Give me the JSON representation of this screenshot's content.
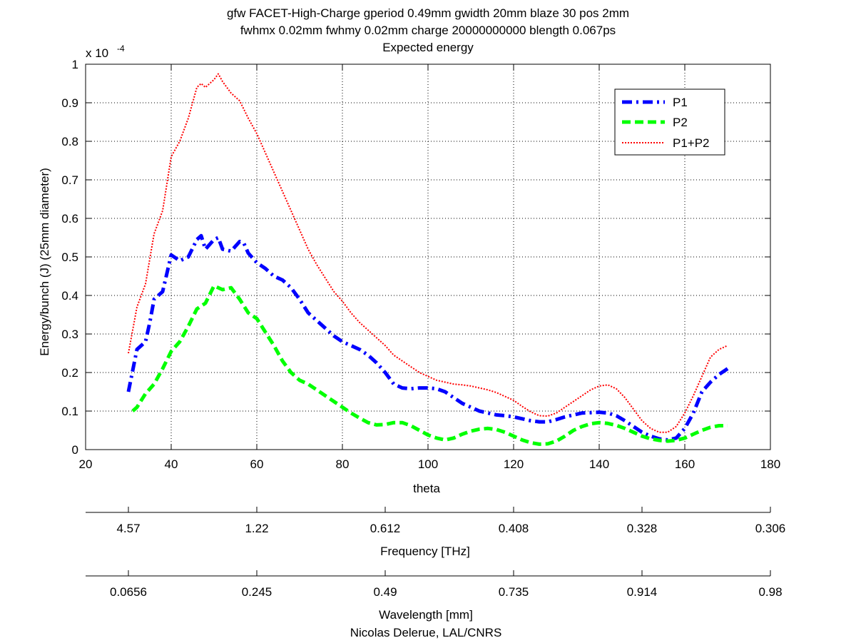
{
  "chart_data": {
    "type": "line",
    "title": [
      "gfw FACET-High-Charge gperiod 0.49mm gwidth 20mm blaze 30 pos 2mm",
      "fwhmx 0.02mm fwhmy 0.02mm charge 20000000000 blength 0.067ps",
      "Expected energy"
    ],
    "xlabel": "theta",
    "ylabel": "Energy/bunch (J) (25mm diameter)",
    "y_multiplier": "x 10",
    "y_multiplier_exp": "-4",
    "xlim": [
      20,
      180
    ],
    "ylim": [
      0,
      1
    ],
    "grid": true,
    "legend_position": "top-right",
    "x_ticks": [
      20,
      40,
      60,
      80,
      100,
      120,
      140,
      160,
      180
    ],
    "y_ticks": [
      0,
      0.1,
      0.2,
      0.3,
      0.4,
      0.5,
      0.6,
      0.7,
      0.8,
      0.9,
      1
    ],
    "x_tick_labels": [
      "20",
      "40",
      "60",
      "80",
      "100",
      "120",
      "140",
      "160",
      "180"
    ],
    "y_tick_labels": [
      "0",
      "0.1",
      "0.2",
      "0.3",
      "0.4",
      "0.5",
      "0.6",
      "0.7",
      "0.8",
      "0.9",
      "1"
    ],
    "series": [
      {
        "name": "P1",
        "color": "#0000ff",
        "style": "dashdot",
        "x": [
          30,
          32,
          34,
          35,
          36,
          38,
          40,
          42,
          44,
          46,
          47,
          48,
          50,
          51,
          52,
          54,
          56,
          57,
          58,
          60,
          62,
          64,
          66,
          68,
          70,
          72,
          74,
          76,
          78,
          80,
          82,
          84,
          86,
          88,
          90,
          92,
          94,
          96,
          98,
          100,
          102,
          104,
          106,
          108,
          110,
          112,
          114,
          116,
          118,
          120,
          122,
          124,
          126,
          128,
          130,
          132,
          134,
          136,
          138,
          140,
          142,
          144,
          146,
          148,
          150,
          152,
          154,
          156,
          158,
          160,
          162,
          164,
          166,
          168,
          170
        ],
        "y": [
          0.15,
          0.26,
          0.28,
          0.33,
          0.39,
          0.41,
          0.505,
          0.49,
          0.5,
          0.545,
          0.555,
          0.52,
          0.545,
          0.55,
          0.52,
          0.515,
          0.54,
          0.535,
          0.51,
          0.485,
          0.47,
          0.45,
          0.44,
          0.42,
          0.39,
          0.355,
          0.335,
          0.315,
          0.295,
          0.28,
          0.27,
          0.26,
          0.245,
          0.225,
          0.2,
          0.17,
          0.16,
          0.158,
          0.16,
          0.16,
          0.158,
          0.15,
          0.135,
          0.12,
          0.11,
          0.1,
          0.095,
          0.09,
          0.088,
          0.085,
          0.08,
          0.075,
          0.072,
          0.072,
          0.078,
          0.085,
          0.09,
          0.095,
          0.096,
          0.097,
          0.095,
          0.088,
          0.075,
          0.06,
          0.045,
          0.035,
          0.028,
          0.025,
          0.03,
          0.055,
          0.095,
          0.15,
          0.175,
          0.195,
          0.21
        ]
      },
      {
        "name": "P2",
        "color": "#00ff00",
        "style": "dashed",
        "x": [
          31,
          32,
          34,
          36,
          38,
          40,
          42,
          44,
          46,
          48,
          50,
          52,
          54,
          56,
          58,
          60,
          62,
          64,
          66,
          68,
          70,
          72,
          74,
          76,
          78,
          80,
          82,
          84,
          86,
          88,
          90,
          92,
          94,
          96,
          98,
          100,
          102,
          104,
          106,
          108,
          110,
          112,
          114,
          116,
          118,
          120,
          122,
          124,
          126,
          128,
          130,
          132,
          134,
          136,
          138,
          140,
          142,
          144,
          146,
          148,
          150,
          152,
          154,
          156,
          158,
          160,
          162,
          164,
          166,
          168,
          170
        ],
        "y": [
          0.1,
          0.11,
          0.145,
          0.17,
          0.21,
          0.255,
          0.28,
          0.32,
          0.365,
          0.38,
          0.425,
          0.415,
          0.42,
          0.39,
          0.355,
          0.34,
          0.305,
          0.27,
          0.23,
          0.2,
          0.18,
          0.17,
          0.155,
          0.14,
          0.125,
          0.11,
          0.095,
          0.082,
          0.07,
          0.064,
          0.065,
          0.07,
          0.07,
          0.062,
          0.05,
          0.038,
          0.03,
          0.025,
          0.03,
          0.04,
          0.048,
          0.053,
          0.055,
          0.052,
          0.045,
          0.035,
          0.025,
          0.018,
          0.014,
          0.015,
          0.022,
          0.035,
          0.05,
          0.06,
          0.067,
          0.07,
          0.068,
          0.063,
          0.055,
          0.045,
          0.035,
          0.028,
          0.024,
          0.022,
          0.024,
          0.03,
          0.04,
          0.05,
          0.058,
          0.062,
          0.062
        ]
      },
      {
        "name": "P1+P2",
        "color": "#ff0000",
        "style": "dotted",
        "x": [
          30,
          32,
          34,
          36,
          38,
          40,
          42,
          44,
          46,
          47,
          48,
          50,
          51,
          52,
          54,
          56,
          58,
          60,
          62,
          64,
          66,
          68,
          70,
          72,
          74,
          76,
          78,
          80,
          82,
          84,
          86,
          88,
          90,
          92,
          94,
          96,
          98,
          100,
          102,
          104,
          106,
          108,
          110,
          112,
          114,
          116,
          118,
          120,
          122,
          124,
          126,
          128,
          130,
          132,
          134,
          136,
          138,
          140,
          142,
          144,
          146,
          148,
          150,
          152,
          154,
          156,
          158,
          160,
          162,
          164,
          166,
          168,
          170
        ],
        "y": [
          0.25,
          0.37,
          0.43,
          0.56,
          0.62,
          0.76,
          0.8,
          0.86,
          0.94,
          0.95,
          0.94,
          0.96,
          0.975,
          0.955,
          0.925,
          0.905,
          0.86,
          0.82,
          0.77,
          0.72,
          0.67,
          0.62,
          0.57,
          0.52,
          0.48,
          0.445,
          0.41,
          0.385,
          0.355,
          0.33,
          0.31,
          0.29,
          0.27,
          0.245,
          0.23,
          0.215,
          0.2,
          0.19,
          0.18,
          0.175,
          0.17,
          0.168,
          0.165,
          0.16,
          0.155,
          0.148,
          0.138,
          0.128,
          0.112,
          0.098,
          0.088,
          0.087,
          0.095,
          0.11,
          0.125,
          0.14,
          0.155,
          0.165,
          0.168,
          0.158,
          0.135,
          0.105,
          0.075,
          0.055,
          0.045,
          0.045,
          0.06,
          0.095,
          0.14,
          0.19,
          0.24,
          0.26,
          0.27
        ]
      }
    ],
    "secondary_axes": [
      {
        "label": "Frequency [THz]",
        "tick_labels": [
          "4.57",
          "1.22",
          "0.612",
          "0.408",
          "0.328",
          "0.306"
        ],
        "tick_theta": [
          30,
          60,
          90,
          120,
          150,
          180
        ]
      },
      {
        "label": "Wavelength [mm]",
        "tick_labels": [
          "0.0656",
          "0.245",
          "0.49",
          "0.735",
          "0.914",
          "0.98"
        ],
        "tick_theta": [
          30,
          60,
          90,
          120,
          150,
          180
        ]
      }
    ],
    "footer": "Nicolas Delerue, LAL/CNRS"
  }
}
